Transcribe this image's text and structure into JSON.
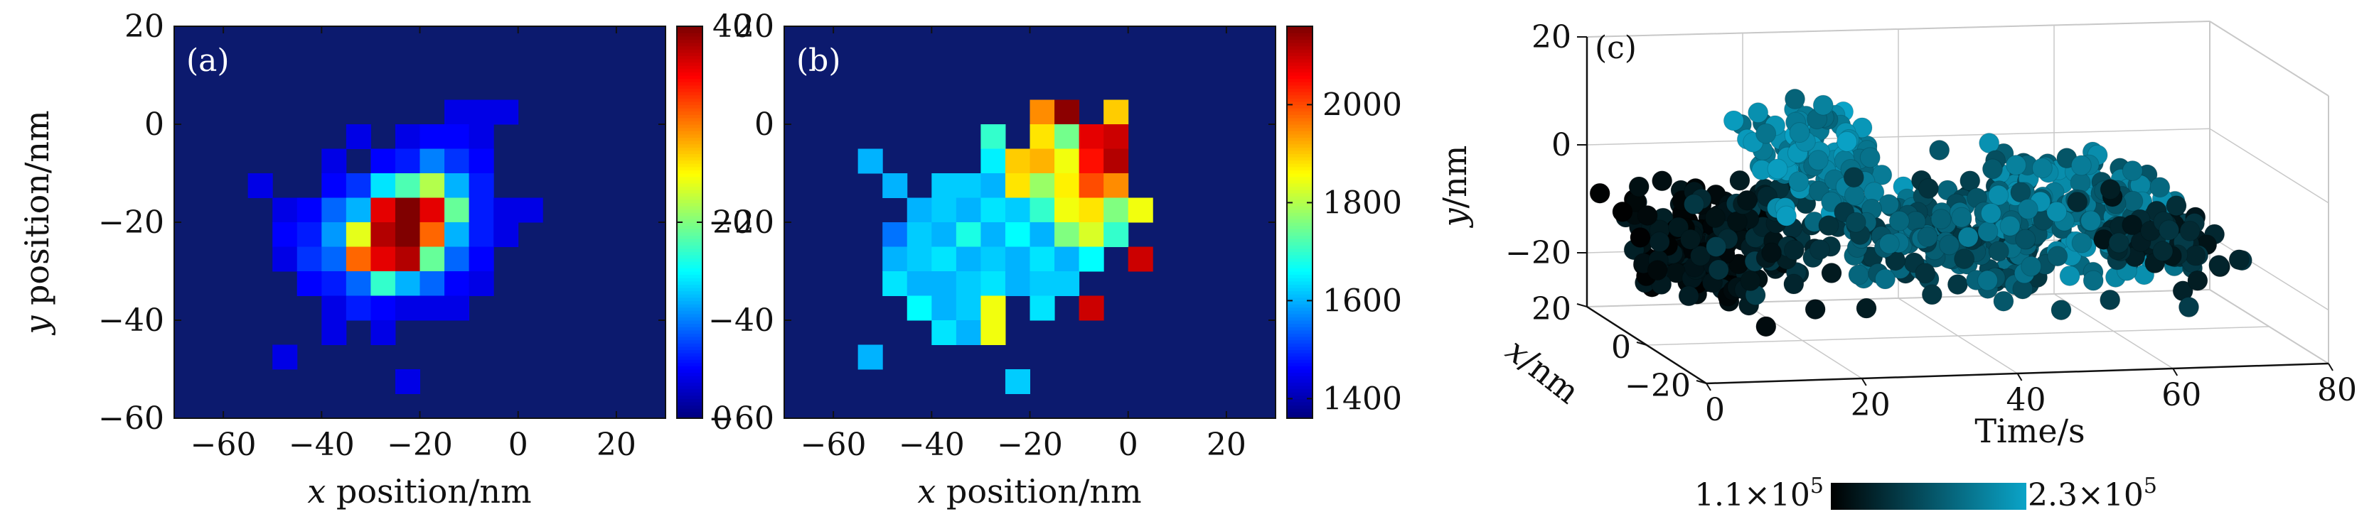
{
  "chart_data": [
    {
      "type": "heatmap",
      "panel_label": "(a)",
      "xlabel_var": "x",
      "xlabel_rest": " position/nm",
      "ylabel_var": "y",
      "ylabel_rest": " position/nm",
      "xlim": [
        -70,
        30
      ],
      "ylim": [
        -60,
        20
      ],
      "xticks": [
        -60,
        -40,
        -20,
        0,
        20
      ],
      "yticks": [
        -60,
        -40,
        -20,
        0,
        20
      ],
      "bin_size": 5,
      "background_color": "#0c1a6e",
      "colorbar": {
        "min": 0,
        "max": 40,
        "ticks": [
          0,
          20,
          40
        ]
      },
      "cells": [
        {
          "x": -15,
          "y": 0,
          "v": 4
        },
        {
          "x": -10,
          "y": 0,
          "v": 4
        },
        {
          "x": -5,
          "y": 0,
          "v": 4
        },
        {
          "x": -35,
          "y": -5,
          "v": 4
        },
        {
          "x": -25,
          "y": -5,
          "v": 4
        },
        {
          "x": -20,
          "y": -5,
          "v": 5
        },
        {
          "x": -15,
          "y": -5,
          "v": 5
        },
        {
          "x": -10,
          "y": -5,
          "v": 4
        },
        {
          "x": -40,
          "y": -10,
          "v": 4
        },
        {
          "x": -30,
          "y": -10,
          "v": 5
        },
        {
          "x": -25,
          "y": -10,
          "v": 6
        },
        {
          "x": -20,
          "y": -10,
          "v": 10
        },
        {
          "x": -15,
          "y": -10,
          "v": 7
        },
        {
          "x": -10,
          "y": -10,
          "v": 5
        },
        {
          "x": -55,
          "y": -15,
          "v": 4
        },
        {
          "x": -40,
          "y": -15,
          "v": 5
        },
        {
          "x": -35,
          "y": -15,
          "v": 7
        },
        {
          "x": -30,
          "y": -15,
          "v": 14
        },
        {
          "x": -25,
          "y": -15,
          "v": 18
        },
        {
          "x": -20,
          "y": -15,
          "v": 22
        },
        {
          "x": -15,
          "y": -15,
          "v": 12
        },
        {
          "x": -10,
          "y": -15,
          "v": 6
        },
        {
          "x": -50,
          "y": -20,
          "v": 4
        },
        {
          "x": -45,
          "y": -20,
          "v": 5
        },
        {
          "x": -40,
          "y": -20,
          "v": 9
        },
        {
          "x": -35,
          "y": -20,
          "v": 12
        },
        {
          "x": -30,
          "y": -20,
          "v": 36
        },
        {
          "x": -25,
          "y": -20,
          "v": 40
        },
        {
          "x": -20,
          "y": -20,
          "v": 36
        },
        {
          "x": -15,
          "y": -20,
          "v": 19
        },
        {
          "x": -10,
          "y": -20,
          "v": 6
        },
        {
          "x": -5,
          "y": -20,
          "v": 4
        },
        {
          "x": 0,
          "y": -20,
          "v": 4
        },
        {
          "x": -50,
          "y": -25,
          "v": 5
        },
        {
          "x": -45,
          "y": -25,
          "v": 6
        },
        {
          "x": -40,
          "y": -25,
          "v": 11
        },
        {
          "x": -35,
          "y": -25,
          "v": 24
        },
        {
          "x": -30,
          "y": -25,
          "v": 38
        },
        {
          "x": -25,
          "y": -25,
          "v": 40
        },
        {
          "x": -20,
          "y": -25,
          "v": 31
        },
        {
          "x": -15,
          "y": -25,
          "v": 12
        },
        {
          "x": -10,
          "y": -25,
          "v": 6
        },
        {
          "x": -5,
          "y": -25,
          "v": 4
        },
        {
          "x": -50,
          "y": -30,
          "v": 4
        },
        {
          "x": -45,
          "y": -30,
          "v": 7
        },
        {
          "x": -40,
          "y": -30,
          "v": 9
        },
        {
          "x": -35,
          "y": -30,
          "v": 31
        },
        {
          "x": -30,
          "y": -30,
          "v": 36
        },
        {
          "x": -25,
          "y": -30,
          "v": 38
        },
        {
          "x": -20,
          "y": -30,
          "v": 19
        },
        {
          "x": -15,
          "y": -30,
          "v": 9
        },
        {
          "x": -10,
          "y": -30,
          "v": 5
        },
        {
          "x": -45,
          "y": -35,
          "v": 5
        },
        {
          "x": -40,
          "y": -35,
          "v": 6
        },
        {
          "x": -35,
          "y": -35,
          "v": 9
        },
        {
          "x": -30,
          "y": -35,
          "v": 17
        },
        {
          "x": -25,
          "y": -35,
          "v": 12
        },
        {
          "x": -20,
          "y": -35,
          "v": 9
        },
        {
          "x": -15,
          "y": -35,
          "v": 5
        },
        {
          "x": -10,
          "y": -35,
          "v": 4
        },
        {
          "x": -40,
          "y": -40,
          "v": 4
        },
        {
          "x": -35,
          "y": -40,
          "v": 6
        },
        {
          "x": -30,
          "y": -40,
          "v": 5
        },
        {
          "x": -25,
          "y": -40,
          "v": 4
        },
        {
          "x": -20,
          "y": -40,
          "v": 4
        },
        {
          "x": -15,
          "y": -40,
          "v": 4
        },
        {
          "x": -40,
          "y": -45,
          "v": 4
        },
        {
          "x": -30,
          "y": -45,
          "v": 4
        },
        {
          "x": -50,
          "y": -50,
          "v": 4
        },
        {
          "x": -25,
          "y": -55,
          "v": 4
        }
      ]
    },
    {
      "type": "heatmap",
      "panel_label": "(b)",
      "xlabel_var": "x",
      "xlabel_rest": " position/nm",
      "xlim": [
        -70,
        30
      ],
      "ylim": [
        -60,
        20
      ],
      "xticks": [
        -60,
        -40,
        -20,
        0,
        20
      ],
      "yticks": [
        -60,
        -40,
        -20,
        0,
        20
      ],
      "bin_size": 5,
      "background_color": "#0c1a6e",
      "colorbar": {
        "min": 1360,
        "max": 2160,
        "ticks": [
          1400,
          1600,
          1800,
          2000
        ]
      },
      "cells": [
        {
          "x": -20,
          "y": 0,
          "v": 1950
        },
        {
          "x": -15,
          "y": 0,
          "v": 2150
        },
        {
          "x": -5,
          "y": 0,
          "v": 1900
        },
        {
          "x": -30,
          "y": -5,
          "v": 1700
        },
        {
          "x": -20,
          "y": -5,
          "v": 1880
        },
        {
          "x": -15,
          "y": -5,
          "v": 1750
        },
        {
          "x": -10,
          "y": -5,
          "v": 2080
        },
        {
          "x": -5,
          "y": -5,
          "v": 2100
        },
        {
          "x": -55,
          "y": -10,
          "v": 1600
        },
        {
          "x": -30,
          "y": -10,
          "v": 1650
        },
        {
          "x": -25,
          "y": -10,
          "v": 1900
        },
        {
          "x": -20,
          "y": -10,
          "v": 1920
        },
        {
          "x": -15,
          "y": -10,
          "v": 1850
        },
        {
          "x": -10,
          "y": -10,
          "v": 2050
        },
        {
          "x": -5,
          "y": -10,
          "v": 2120
        },
        {
          "x": -50,
          "y": -15,
          "v": 1600
        },
        {
          "x": -40,
          "y": -15,
          "v": 1620
        },
        {
          "x": -35,
          "y": -15,
          "v": 1620
        },
        {
          "x": -30,
          "y": -15,
          "v": 1600
        },
        {
          "x": -25,
          "y": -15,
          "v": 1880
        },
        {
          "x": -20,
          "y": -15,
          "v": 1780
        },
        {
          "x": -15,
          "y": -15,
          "v": 1870
        },
        {
          "x": -10,
          "y": -15,
          "v": 2000
        },
        {
          "x": -5,
          "y": -15,
          "v": 1950
        },
        {
          "x": -45,
          "y": -20,
          "v": 1600
        },
        {
          "x": -40,
          "y": -20,
          "v": 1620
        },
        {
          "x": -35,
          "y": -20,
          "v": 1600
        },
        {
          "x": -30,
          "y": -20,
          "v": 1640
        },
        {
          "x": -25,
          "y": -20,
          "v": 1620
        },
        {
          "x": -20,
          "y": -20,
          "v": 1700
        },
        {
          "x": -15,
          "y": -20,
          "v": 1850
        },
        {
          "x": -10,
          "y": -20,
          "v": 1880
        },
        {
          "x": -5,
          "y": -20,
          "v": 1760
        },
        {
          "x": 0,
          "y": -20,
          "v": 1850
        },
        {
          "x": -50,
          "y": -25,
          "v": 1550
        },
        {
          "x": -45,
          "y": -25,
          "v": 1620
        },
        {
          "x": -40,
          "y": -25,
          "v": 1600
        },
        {
          "x": -35,
          "y": -25,
          "v": 1680
        },
        {
          "x": -30,
          "y": -25,
          "v": 1600
        },
        {
          "x": -25,
          "y": -25,
          "v": 1660
        },
        {
          "x": -20,
          "y": -25,
          "v": 1600
        },
        {
          "x": -15,
          "y": -25,
          "v": 1760
        },
        {
          "x": -10,
          "y": -25,
          "v": 1830
        },
        {
          "x": -5,
          "y": -25,
          "v": 1700
        },
        {
          "x": -50,
          "y": -30,
          "v": 1600
        },
        {
          "x": -45,
          "y": -30,
          "v": 1620
        },
        {
          "x": -40,
          "y": -30,
          "v": 1640
        },
        {
          "x": -35,
          "y": -30,
          "v": 1600
        },
        {
          "x": -30,
          "y": -30,
          "v": 1620
        },
        {
          "x": -25,
          "y": -30,
          "v": 1600
        },
        {
          "x": -20,
          "y": -30,
          "v": 1640
        },
        {
          "x": -15,
          "y": -30,
          "v": 1600
        },
        {
          "x": -10,
          "y": -30,
          "v": 1660
        },
        {
          "x": 0,
          "y": -30,
          "v": 2100
        },
        {
          "x": -50,
          "y": -35,
          "v": 1640
        },
        {
          "x": -45,
          "y": -35,
          "v": 1600
        },
        {
          "x": -40,
          "y": -35,
          "v": 1600
        },
        {
          "x": -35,
          "y": -35,
          "v": 1620
        },
        {
          "x": -30,
          "y": -35,
          "v": 1640
        },
        {
          "x": -25,
          "y": -35,
          "v": 1600
        },
        {
          "x": -20,
          "y": -35,
          "v": 1620
        },
        {
          "x": -15,
          "y": -35,
          "v": 1620
        },
        {
          "x": -45,
          "y": -40,
          "v": 1660
        },
        {
          "x": -40,
          "y": -40,
          "v": 1600
        },
        {
          "x": -35,
          "y": -40,
          "v": 1620
        },
        {
          "x": -30,
          "y": -40,
          "v": 1850
        },
        {
          "x": -20,
          "y": -40,
          "v": 1640
        },
        {
          "x": -10,
          "y": -40,
          "v": 2100
        },
        {
          "x": -40,
          "y": -45,
          "v": 1640
        },
        {
          "x": -35,
          "y": -45,
          "v": 1600
        },
        {
          "x": -30,
          "y": -45,
          "v": 1850
        },
        {
          "x": -55,
          "y": -50,
          "v": 1600
        },
        {
          "x": -25,
          "y": -55,
          "v": 1620
        }
      ]
    },
    {
      "type": "scatter",
      "panel_label": "(c)",
      "xlabel": "Time/s",
      "ylabel_var": "y",
      "ylabel_rest": "/nm",
      "xaxis_var": "x",
      "xaxis_rest": "/nm",
      "time_lim": [
        0,
        80
      ],
      "time_ticks": [
        0,
        20,
        40,
        60,
        80
      ],
      "y_lim": [
        -30,
        20
      ],
      "y_ticks": [
        -20,
        0,
        20
      ],
      "x_ticks": [
        20,
        0,
        -20
      ],
      "colorbar": {
        "min_label": "1.1",
        "max_label": "2.3",
        "times_sign": "×",
        "base": "10",
        "exponent": "5",
        "colors": [
          "#000000",
          "#0aa4c8"
        ]
      },
      "clusters": [
        {
          "t_range": [
            0,
            12
          ],
          "y_center": -12,
          "y_spread": 8,
          "c_range": [
            0.0,
            0.2
          ],
          "count": 150
        },
        {
          "t_range": [
            10,
            20
          ],
          "y_center": -10,
          "y_spread": 8,
          "c_range": [
            0.1,
            0.4
          ],
          "count": 60
        },
        {
          "t_range": [
            16,
            28
          ],
          "y_center": 3,
          "y_spread": 8,
          "c_range": [
            0.6,
            1.0
          ],
          "count": 120
        },
        {
          "t_range": [
            27,
            50
          ],
          "y_center": -12,
          "y_spread": 8,
          "c_range": [
            0.3,
            0.7
          ],
          "count": 180
        },
        {
          "t_range": [
            45,
            65
          ],
          "y_center": -8,
          "y_spread": 9,
          "c_range": [
            0.45,
            0.9
          ],
          "count": 170
        },
        {
          "t_range": [
            62,
            72
          ],
          "y_center": -14,
          "y_spread": 7,
          "c_range": [
            0.1,
            0.4
          ],
          "count": 70
        }
      ]
    }
  ]
}
